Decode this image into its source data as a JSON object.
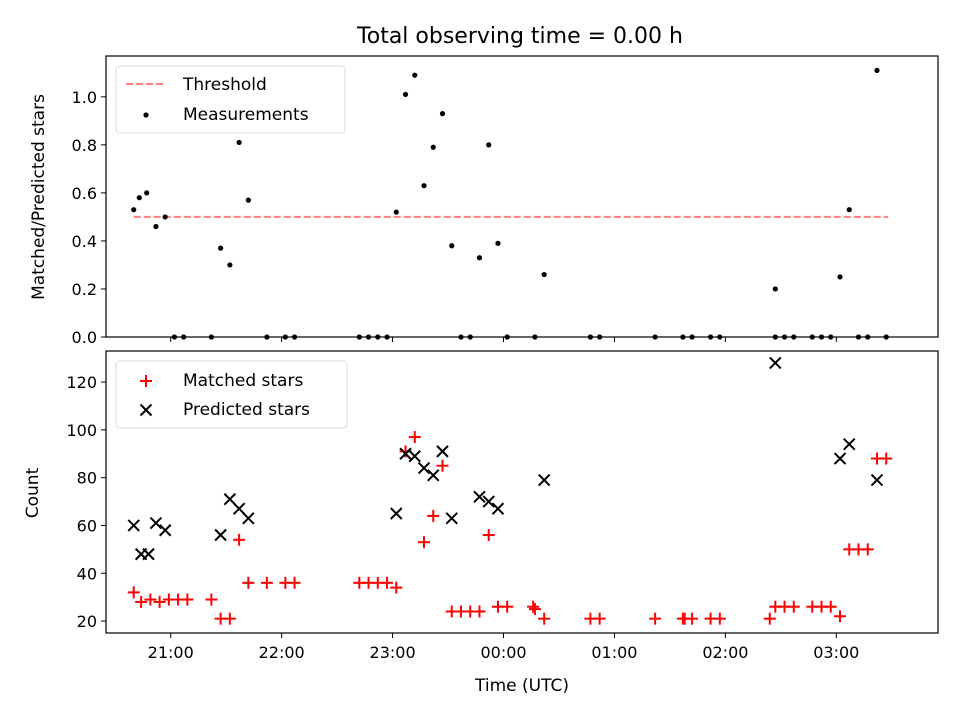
{
  "title": "Total observing time = 0.00 h",
  "colors": {
    "threshold": "#ff7f7f",
    "measurement": "#000000",
    "matched": "#ff0000",
    "predicted": "#000000"
  },
  "chart_data": [
    {
      "type": "scatter",
      "ylabel": "Matched/Predicted stars",
      "ylim": [
        0,
        1.17
      ],
      "yticks": [
        "0.0",
        "0.2",
        "0.4",
        "0.6",
        "0.8",
        "1.0"
      ],
      "legend_position": "top-left",
      "threshold": {
        "name": "Threshold",
        "value": 0.5,
        "x_range": [
          "20:40",
          "03:28"
        ]
      },
      "series": [
        {
          "name": "Measurements",
          "marker": "dot",
          "points": [
            {
              "x": "20:40",
              "y": 0.53
            },
            {
              "x": "20:43",
              "y": 0.58
            },
            {
              "x": "20:47",
              "y": 0.6
            },
            {
              "x": "20:52",
              "y": 0.46
            },
            {
              "x": "20:57",
              "y": 0.5
            },
            {
              "x": "21:02",
              "y": 0.0
            },
            {
              "x": "21:07",
              "y": 0.0
            },
            {
              "x": "21:22",
              "y": 0.0
            },
            {
              "x": "21:27",
              "y": 0.37
            },
            {
              "x": "21:32",
              "y": 0.3
            },
            {
              "x": "21:37",
              "y": 0.81
            },
            {
              "x": "21:42",
              "y": 0.57
            },
            {
              "x": "21:52",
              "y": 0.0
            },
            {
              "x": "22:02",
              "y": 0.0
            },
            {
              "x": "22:07",
              "y": 0.0
            },
            {
              "x": "22:42",
              "y": 0.0
            },
            {
              "x": "22:47",
              "y": 0.0
            },
            {
              "x": "22:52",
              "y": 0.0
            },
            {
              "x": "22:57",
              "y": 0.0
            },
            {
              "x": "23:02",
              "y": 0.52
            },
            {
              "x": "23:07",
              "y": 1.01
            },
            {
              "x": "23:12",
              "y": 1.09
            },
            {
              "x": "23:17",
              "y": 0.63
            },
            {
              "x": "23:22",
              "y": 0.79
            },
            {
              "x": "23:27",
              "y": 0.93
            },
            {
              "x": "23:32",
              "y": 0.38
            },
            {
              "x": "23:37",
              "y": 0.0
            },
            {
              "x": "23:42",
              "y": 0.0
            },
            {
              "x": "23:47",
              "y": 0.33
            },
            {
              "x": "23:52",
              "y": 0.8
            },
            {
              "x": "23:57",
              "y": 0.39
            },
            {
              "x": "00:02",
              "y": 0.0
            },
            {
              "x": "00:17",
              "y": 0.0
            },
            {
              "x": "00:22",
              "y": 0.26
            },
            {
              "x": "00:47",
              "y": 0.0
            },
            {
              "x": "00:52",
              "y": 0.0
            },
            {
              "x": "01:22",
              "y": 0.0
            },
            {
              "x": "01:37",
              "y": 0.0
            },
            {
              "x": "01:42",
              "y": 0.0
            },
            {
              "x": "01:52",
              "y": 0.0
            },
            {
              "x": "01:57",
              "y": 0.0
            },
            {
              "x": "02:27",
              "y": 0.2
            },
            {
              "x": "02:27",
              "y": 0.0
            },
            {
              "x": "02:32",
              "y": 0.0
            },
            {
              "x": "02:37",
              "y": 0.0
            },
            {
              "x": "02:47",
              "y": 0.0
            },
            {
              "x": "02:52",
              "y": 0.0
            },
            {
              "x": "02:57",
              "y": 0.0
            },
            {
              "x": "03:02",
              "y": 0.25
            },
            {
              "x": "03:07",
              "y": 0.53
            },
            {
              "x": "03:12",
              "y": 0.0
            },
            {
              "x": "03:17",
              "y": 0.0
            },
            {
              "x": "03:22",
              "y": 1.11
            },
            {
              "x": "03:27",
              "y": 0.0
            }
          ]
        }
      ]
    },
    {
      "type": "scatter",
      "xlabel": "Time (UTC)",
      "ylabel": "Count",
      "ylim": [
        15,
        133
      ],
      "yticks": [
        "20",
        "40",
        "60",
        "80",
        "100",
        "120"
      ],
      "xticks": [
        "21:00",
        "22:00",
        "23:00",
        "00:00",
        "01:00",
        "02:00",
        "03:00"
      ],
      "xlim": [
        "20:25",
        "03:55"
      ],
      "legend_position": "top-left",
      "series": [
        {
          "name": "Matched stars",
          "marker": "plus",
          "points": [
            {
              "x": "20:40",
              "y": 32
            },
            {
              "x": "20:44",
              "y": 28
            },
            {
              "x": "20:49",
              "y": 29
            },
            {
              "x": "20:54",
              "y": 28
            },
            {
              "x": "20:59",
              "y": 29
            },
            {
              "x": "21:04",
              "y": 29
            },
            {
              "x": "21:09",
              "y": 29
            },
            {
              "x": "21:22",
              "y": 29
            },
            {
              "x": "21:27",
              "y": 21
            },
            {
              "x": "21:32",
              "y": 21
            },
            {
              "x": "21:37",
              "y": 54
            },
            {
              "x": "21:42",
              "y": 36
            },
            {
              "x": "21:52",
              "y": 36
            },
            {
              "x": "22:02",
              "y": 36
            },
            {
              "x": "22:07",
              "y": 36
            },
            {
              "x": "22:42",
              "y": 36
            },
            {
              "x": "22:47",
              "y": 36
            },
            {
              "x": "22:52",
              "y": 36
            },
            {
              "x": "22:57",
              "y": 36
            },
            {
              "x": "23:02",
              "y": 34
            },
            {
              "x": "23:07",
              "y": 91
            },
            {
              "x": "23:12",
              "y": 97
            },
            {
              "x": "23:17",
              "y": 53
            },
            {
              "x": "23:22",
              "y": 64
            },
            {
              "x": "23:27",
              "y": 85
            },
            {
              "x": "23:32",
              "y": 24
            },
            {
              "x": "23:37",
              "y": 24
            },
            {
              "x": "23:42",
              "y": 24
            },
            {
              "x": "23:47",
              "y": 24
            },
            {
              "x": "23:52",
              "y": 56
            },
            {
              "x": "23:57",
              "y": 26
            },
            {
              "x": "00:02",
              "y": 26
            },
            {
              "x": "00:16",
              "y": 26
            },
            {
              "x": "00:17",
              "y": 25
            },
            {
              "x": "00:22",
              "y": 21
            },
            {
              "x": "00:47",
              "y": 21
            },
            {
              "x": "00:52",
              "y": 21
            },
            {
              "x": "01:22",
              "y": 21
            },
            {
              "x": "01:37",
              "y": 21
            },
            {
              "x": "01:38",
              "y": 21
            },
            {
              "x": "01:42",
              "y": 21
            },
            {
              "x": "01:52",
              "y": 21
            },
            {
              "x": "01:57",
              "y": 21
            },
            {
              "x": "02:24",
              "y": 21
            },
            {
              "x": "02:27",
              "y": 26
            },
            {
              "x": "02:32",
              "y": 26
            },
            {
              "x": "02:37",
              "y": 26
            },
            {
              "x": "02:47",
              "y": 26
            },
            {
              "x": "02:52",
              "y": 26
            },
            {
              "x": "02:57",
              "y": 26
            },
            {
              "x": "03:02",
              "y": 22
            },
            {
              "x": "03:07",
              "y": 50
            },
            {
              "x": "03:12",
              "y": 50
            },
            {
              "x": "03:17",
              "y": 50
            },
            {
              "x": "03:22",
              "y": 88
            },
            {
              "x": "03:27",
              "y": 88
            }
          ]
        },
        {
          "name": "Predicted stars",
          "marker": "x",
          "points": [
            {
              "x": "20:40",
              "y": 60
            },
            {
              "x": "20:44",
              "y": 48
            },
            {
              "x": "20:48",
              "y": 48
            },
            {
              "x": "20:52",
              "y": 61
            },
            {
              "x": "20:57",
              "y": 58
            },
            {
              "x": "21:27",
              "y": 56
            },
            {
              "x": "21:32",
              "y": 71
            },
            {
              "x": "21:37",
              "y": 67
            },
            {
              "x": "21:42",
              "y": 63
            },
            {
              "x": "23:02",
              "y": 65
            },
            {
              "x": "23:07",
              "y": 90
            },
            {
              "x": "23:12",
              "y": 89
            },
            {
              "x": "23:17",
              "y": 84
            },
            {
              "x": "23:22",
              "y": 81
            },
            {
              "x": "23:27",
              "y": 91
            },
            {
              "x": "23:32",
              "y": 63
            },
            {
              "x": "23:47",
              "y": 72
            },
            {
              "x": "23:52",
              "y": 70
            },
            {
              "x": "23:57",
              "y": 67
            },
            {
              "x": "00:22",
              "y": 79
            },
            {
              "x": "02:27",
              "y": 128
            },
            {
              "x": "03:02",
              "y": 88
            },
            {
              "x": "03:07",
              "y": 94
            },
            {
              "x": "03:22",
              "y": 79
            }
          ]
        }
      ]
    }
  ]
}
